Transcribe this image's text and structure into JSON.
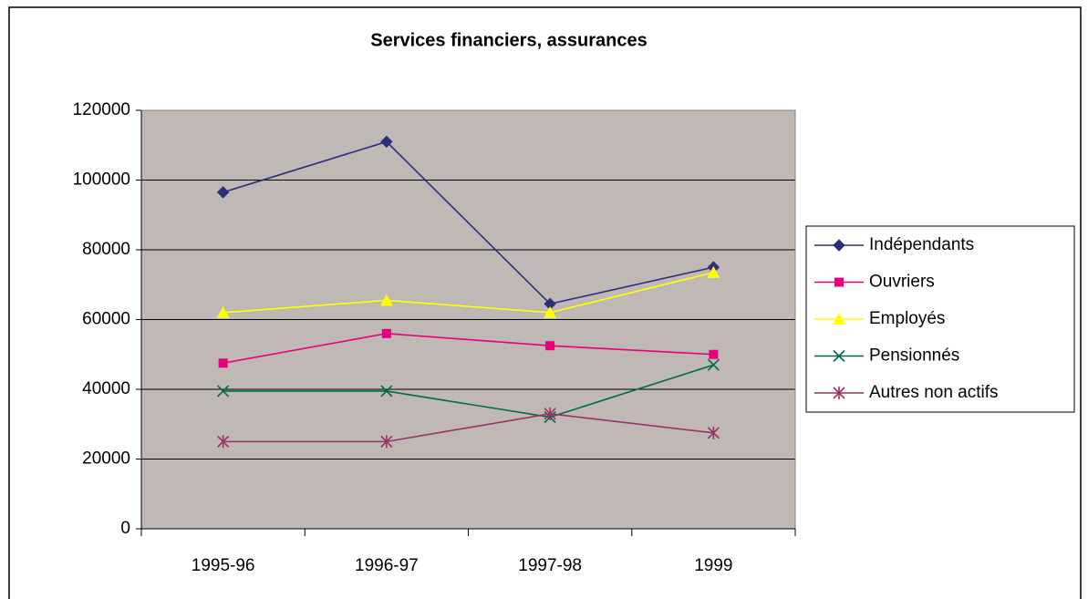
{
  "chart_data": {
    "type": "line",
    "title": "Services financiers, assurances",
    "categories": [
      "1995-96",
      "1996-97",
      "1997-98",
      "1999"
    ],
    "series": [
      {
        "name": "Indépendants",
        "color": "#2e2e78",
        "marker": "diamond",
        "values": [
          96500,
          111000,
          64500,
          75000
        ]
      },
      {
        "name": "Ouvriers",
        "color": "#e6007e",
        "marker": "square",
        "values": [
          47500,
          56000,
          52500,
          50000
        ]
      },
      {
        "name": "Employés",
        "color": "#ffff00",
        "marker": "triangle",
        "values": [
          62000,
          65500,
          62000,
          73500
        ]
      },
      {
        "name": "Pensionnés",
        "color": "#006a45",
        "marker": "x",
        "values": [
          39500,
          39500,
          32000,
          47000
        ]
      },
      {
        "name": "Autres non actifs",
        "color": "#993366",
        "marker": "star",
        "values": [
          25000,
          25000,
          33000,
          27500
        ]
      }
    ],
    "ylim": [
      0,
      120000
    ],
    "yticks": [
      0,
      20000,
      40000,
      60000,
      80000,
      100000,
      120000
    ],
    "grid": true,
    "legend": "right",
    "plot_background": "#c0b8b4"
  }
}
